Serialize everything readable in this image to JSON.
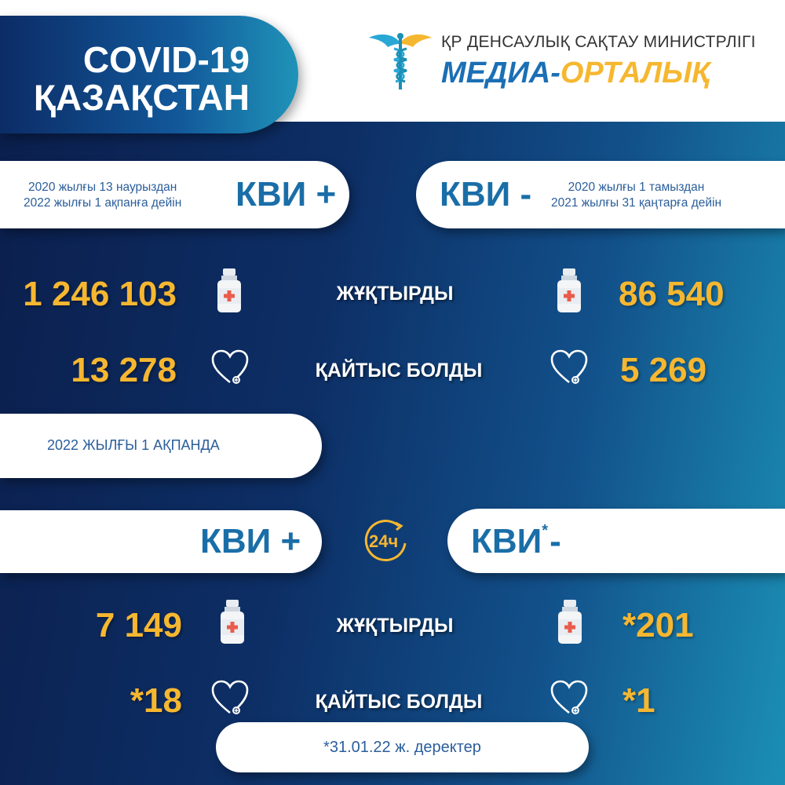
{
  "header": {
    "title_line1": "COVID-19",
    "title_line2": "ҚАЗАҚСТАН",
    "logo_line1": "ҚР ДЕНСАУЛЫҚ САҚТАУ МИНИСТРЛІГІ",
    "logo_part1": "МЕДИА-",
    "logo_part2": "ОРТАЛЫҚ",
    "icon": "caduceus-icon"
  },
  "colors": {
    "accent_yellow": "#f6b730",
    "brand_blue": "#1a6ea8",
    "dark_navy": "#0b1f4d",
    "teal": "#1b8fb5"
  },
  "cumulative": {
    "positive": {
      "period_line1": "2020 жылғы 13 наурыздан",
      "period_line2": "2022 жылғы 1 ақпанға дейін",
      "label": "КВИ +"
    },
    "negative": {
      "period_line1": "2020 жылғы 1 тамыздан",
      "period_line2": "2021 жылғы 31 қаңтарға дейін",
      "label": "КВИ -"
    },
    "rows": [
      {
        "label": "ЖҰҚТЫРДЫ",
        "positive": "1 246 103",
        "negative": "86 540",
        "icon": "medicine-bottle-icon"
      },
      {
        "label": "ҚАЙТЫС БОЛДЫ",
        "positive": "13 278",
        "negative": "5 269",
        "icon": "heart-icon"
      }
    ]
  },
  "daily": {
    "date_label": "2022 ЖЫЛҒЫ 1 АҚПАНДА",
    "positive_label": "КВИ +",
    "negative_label": "КВИ",
    "negative_sup": "*",
    "negative_suffix": "-",
    "clock_label": "24ч",
    "rows": [
      {
        "label": "ЖҰҚТЫРДЫ",
        "positive": "7 149",
        "negative": "*201"
      },
      {
        "label": "ҚАЙТЫС БОЛДЫ",
        "positive": "*18",
        "negative": "*1"
      }
    ],
    "footnote": "*31.01.22 ж. деректер"
  }
}
